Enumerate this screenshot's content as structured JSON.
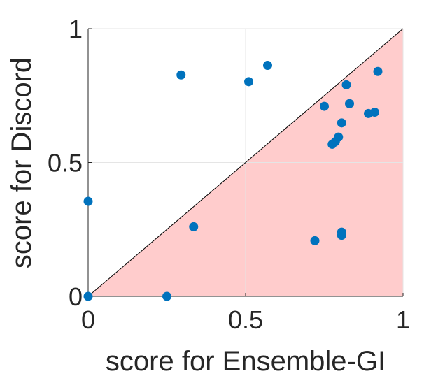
{
  "chart_data": {
    "type": "scatter",
    "xlabel": "score for Ensemble-GI",
    "ylabel": "score for Discord",
    "xlim": [
      0,
      1
    ],
    "ylim": [
      0,
      1
    ],
    "xticks": [
      0,
      0.5,
      1
    ],
    "yticks": [
      0,
      0.5,
      1
    ],
    "xtick_labels": [
      "0",
      "0.5",
      "1"
    ],
    "ytick_labels": [
      "0",
      "0.5",
      "1"
    ],
    "grid": true,
    "diagonal_line": true,
    "shaded_region": "below diagonal (y < x)",
    "colors": {
      "marker": "#0072BD",
      "shade": "#FFCCCC",
      "line": "#000000",
      "grid": "#E5E5E5"
    },
    "points": [
      {
        "x": 0.0,
        "y": 0.0
      },
      {
        "x": 0.0,
        "y": 0.355
      },
      {
        "x": 0.25,
        "y": 0.0
      },
      {
        "x": 0.295,
        "y": 0.827
      },
      {
        "x": 0.335,
        "y": 0.26
      },
      {
        "x": 0.51,
        "y": 0.802
      },
      {
        "x": 0.57,
        "y": 0.863
      },
      {
        "x": 0.72,
        "y": 0.208
      },
      {
        "x": 0.75,
        "y": 0.71
      },
      {
        "x": 0.775,
        "y": 0.568
      },
      {
        "x": 0.785,
        "y": 0.578
      },
      {
        "x": 0.795,
        "y": 0.595
      },
      {
        "x": 0.805,
        "y": 0.648
      },
      {
        "x": 0.805,
        "y": 0.228
      },
      {
        "x": 0.805,
        "y": 0.24
      },
      {
        "x": 0.82,
        "y": 0.79
      },
      {
        "x": 0.83,
        "y": 0.72
      },
      {
        "x": 0.89,
        "y": 0.683
      },
      {
        "x": 0.91,
        "y": 0.688
      },
      {
        "x": 0.92,
        "y": 0.84
      }
    ]
  }
}
